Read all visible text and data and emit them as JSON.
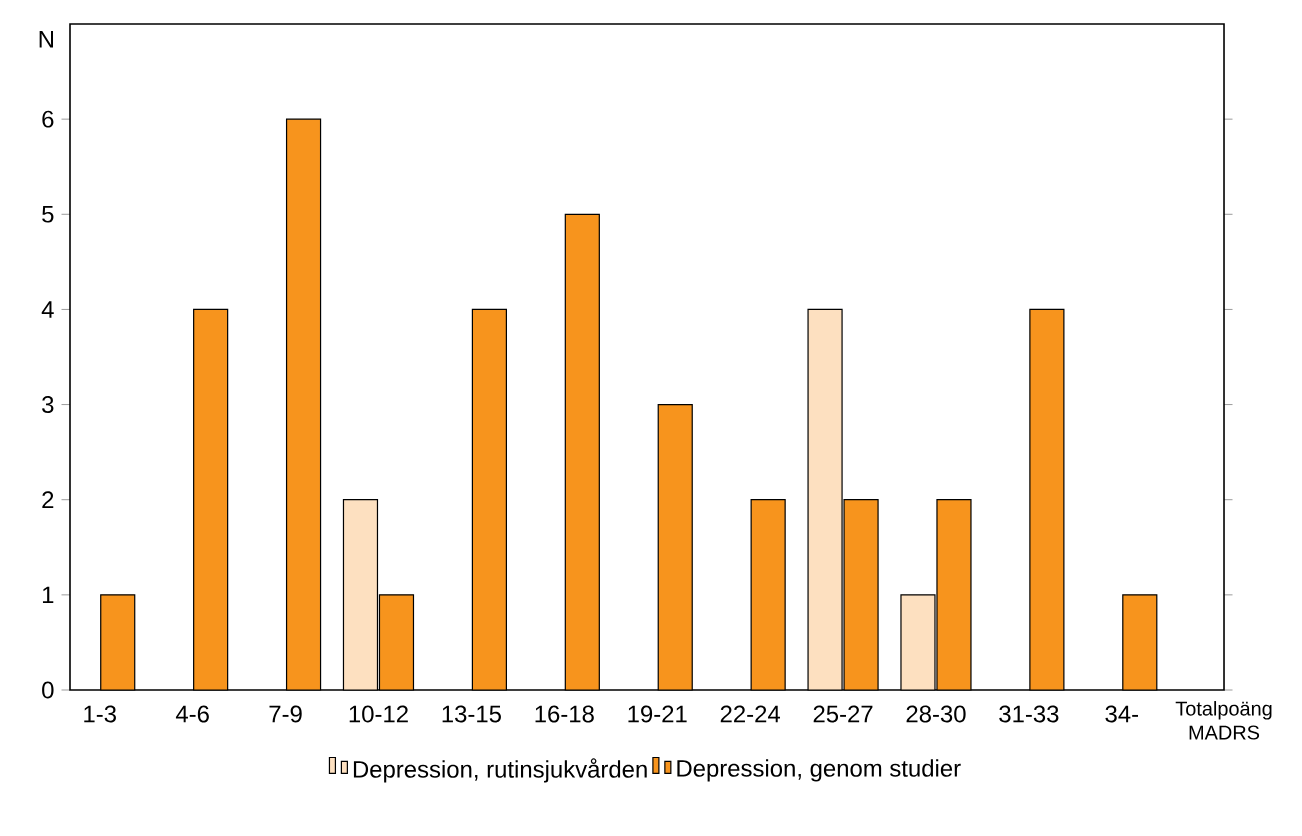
{
  "chart_data": {
    "type": "bar",
    "ylabel": "N",
    "xlabel": "Totalpoäng MADRS",
    "categories": [
      "1-3",
      "4-6",
      "7-9",
      "10-12",
      "13-15",
      "16-18",
      "19-21",
      "22-24",
      "25-27",
      "28-30",
      "31-33",
      "34-"
    ],
    "series": [
      {
        "name": "Depression, rutinsjukvården",
        "color": "#fde0c0",
        "values": [
          null,
          null,
          null,
          2,
          null,
          null,
          null,
          null,
          4,
          1,
          null,
          null
        ]
      },
      {
        "name": "Depression, genom studier",
        "color": "#f7941d",
        "values": [
          1,
          4,
          6,
          1,
          4,
          5,
          3,
          2,
          2,
          2,
          4,
          1
        ]
      }
    ],
    "ylim": [
      0,
      7
    ],
    "yticks": [
      0,
      1,
      2,
      3,
      4,
      5,
      6
    ],
    "grid": false,
    "legend": "bottom"
  }
}
